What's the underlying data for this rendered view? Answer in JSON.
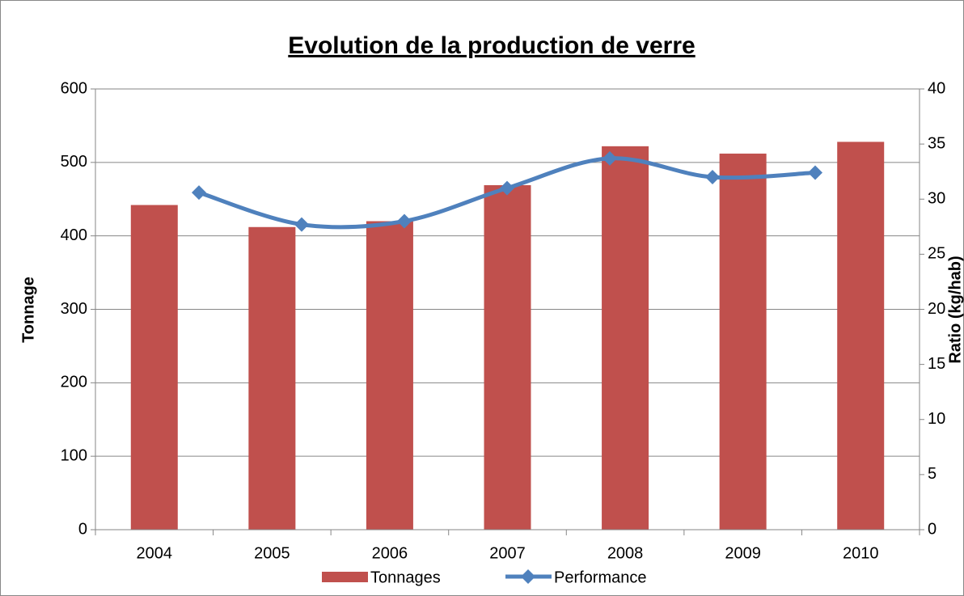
{
  "chart_data": {
    "type": "bar-line",
    "title": "Evolution de la production  de verre",
    "y_label": "Tonnage",
    "y2_label": "Ratio (kg/hab)",
    "categories": [
      "2004",
      "2005",
      "2006",
      "2007",
      "2008",
      "2009",
      "2010"
    ],
    "series": [
      {
        "name": "Tonnages",
        "color": "#c0504d",
        "type": "bar",
        "values": [
          442,
          412,
          420,
          469,
          522,
          512,
          528
        ]
      },
      {
        "name": "Performance",
        "color": "#4f81bd",
        "type": "line",
        "axis": "y2",
        "values": [
          30.6,
          27.7,
          28.0,
          31.0,
          33.7,
          32.0,
          32.4
        ]
      }
    ],
    "ylim": [
      0,
      600
    ],
    "yticks": [
      0,
      100,
      200,
      300,
      400,
      500,
      600
    ],
    "y2lim": [
      0,
      40
    ],
    "y2ticks": [
      0,
      5,
      10,
      15,
      20,
      25,
      30,
      35,
      40
    ],
    "grid": true,
    "legend": "bottom"
  }
}
